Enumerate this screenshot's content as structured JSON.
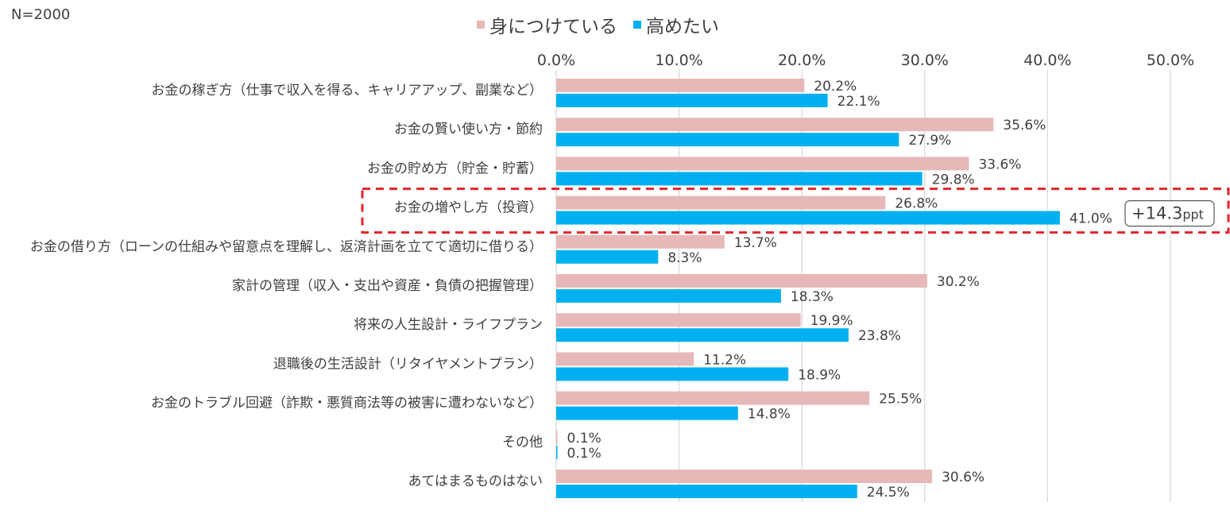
{
  "sample": "N=2000",
  "annotation": "+14.3ppt",
  "annotation_main": "+14.3",
  "annotation_unit": "ppt",
  "highlight_category": "お金の増やし方（投資）",
  "colors": {
    "series1": "#E6B9B8",
    "series2": "#00B0F0",
    "highlight": "#E0262D",
    "grid": "#D9D9D9",
    "text": "#404040"
  },
  "chart_data": {
    "type": "bar",
    "orientation": "horizontal",
    "title": "",
    "xlabel": "",
    "ylabel": "",
    "xlim": [
      0,
      50
    ],
    "x_ticks": [
      "0.0%",
      "10.0%",
      "20.0%",
      "30.0%",
      "40.0%",
      "50.0%"
    ],
    "x_tick_values": [
      0,
      10,
      20,
      30,
      40,
      50
    ],
    "grid": true,
    "legend_position": "top-center",
    "categories": [
      "お金の稼ぎ方（仕事で収入を得る、キャリアアップ、副業など）",
      "お金の賢い使い方・節約",
      "お金の貯め方（貯金・貯蓄）",
      "お金の増やし方（投資）",
      "お金の借り方（ローンの仕組みや留意点を理解し、返済計画を立てて適切に借りる）",
      "家計の管理（収入・支出や資産・負債の把握管理）",
      "将来の人生設計・ライフプラン",
      "退職後の生活設計（リタイヤメントプラン）",
      "お金のトラブル回避（詐欺・悪質商法等の被害に遭わないなど）",
      "その他",
      "あてはまるものはない"
    ],
    "series": [
      {
        "name": "身につけている",
        "color": "#E6B9B8",
        "values": [
          20.2,
          35.6,
          33.6,
          26.8,
          13.7,
          30.2,
          19.9,
          11.2,
          25.5,
          0.1,
          30.6
        ],
        "labels": [
          "20.2%",
          "35.6%",
          "33.6%",
          "26.8%",
          "13.7%",
          "30.2%",
          "19.9%",
          "11.2%",
          "25.5%",
          "0.1%",
          "30.6%"
        ]
      },
      {
        "name": "高めたい",
        "color": "#00B0F0",
        "values": [
          22.1,
          27.9,
          29.8,
          41.0,
          8.3,
          18.3,
          23.8,
          18.9,
          14.8,
          0.1,
          24.5
        ],
        "labels": [
          "22.1%",
          "27.9%",
          "29.8%",
          "41.0%",
          "8.3%",
          "18.3%",
          "23.8%",
          "18.9%",
          "14.8%",
          "0.1%",
          "24.5%"
        ]
      }
    ]
  }
}
